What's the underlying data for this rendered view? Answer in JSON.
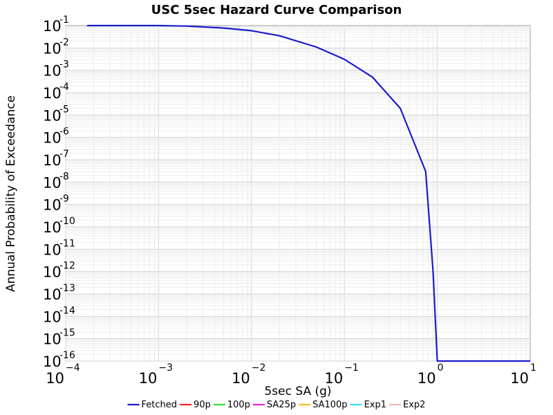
{
  "chart_data": {
    "type": "line",
    "title": "USC 5sec Hazard Curve Comparison",
    "xlabel": "5sec SA (g)",
    "ylabel": "Annual Probability of Exceedance",
    "x_scale": "log",
    "y_scale": "log",
    "xlim": [
      0.0001,
      10
    ],
    "ylim": [
      1e-16,
      0.1
    ],
    "x_ticks": [
      {
        "base": "10",
        "exp": "−4",
        "value": 0.0001
      },
      {
        "base": "10",
        "exp": "−3",
        "value": 0.001
      },
      {
        "base": "10",
        "exp": "−2",
        "value": 0.01
      },
      {
        "base": "10",
        "exp": "−1",
        "value": 0.1
      },
      {
        "base": "10",
        "exp": "0",
        "value": 1
      },
      {
        "base": "10",
        "exp": "1",
        "value": 10
      }
    ],
    "y_ticks": [
      {
        "base": "10",
        "exp": "-1",
        "value": 0.1
      },
      {
        "base": "10",
        "exp": "-2",
        "value": 0.01
      },
      {
        "base": "10",
        "exp": "-3",
        "value": 0.001
      },
      {
        "base": "10",
        "exp": "-4",
        "value": 0.0001
      },
      {
        "base": "10",
        "exp": "-5",
        "value": 1e-05
      },
      {
        "base": "10",
        "exp": "-6",
        "value": 1e-06
      },
      {
        "base": "10",
        "exp": "-7",
        "value": 1e-07
      },
      {
        "base": "10",
        "exp": "-8",
        "value": 1e-08
      },
      {
        "base": "10",
        "exp": "-9",
        "value": 1e-09
      },
      {
        "base": "10",
        "exp": "-10",
        "value": 1e-10
      },
      {
        "base": "10",
        "exp": "-11",
        "value": 1e-11
      },
      {
        "base": "10",
        "exp": "-12",
        "value": 1e-12
      },
      {
        "base": "10",
        "exp": "-13",
        "value": 1e-13
      },
      {
        "base": "10",
        "exp": "-14",
        "value": 1e-14
      },
      {
        "base": "10",
        "exp": "-15",
        "value": 1e-15
      },
      {
        "base": "10",
        "exp": "-16",
        "value": 1e-16
      }
    ],
    "grid": true,
    "legend_position": "bottom",
    "series": [
      {
        "name": "Fetched",
        "color": "#1a1acc",
        "x": [
          0.00017,
          0.0005,
          0.001,
          0.002,
          0.005,
          0.01,
          0.02,
          0.05,
          0.1,
          0.2,
          0.4,
          0.75,
          0.9,
          1.0,
          10
        ],
        "y": [
          0.1,
          0.1,
          0.1,
          0.095,
          0.078,
          0.059,
          0.035,
          0.011,
          0.0031,
          0.0005,
          2e-05,
          3e-08,
          1e-12,
          1e-16,
          1e-16
        ]
      },
      {
        "name": "90p",
        "color": "#ff2020",
        "x": [],
        "y": []
      },
      {
        "name": "100p",
        "color": "#33dd33",
        "x": [],
        "y": []
      },
      {
        "name": "SA25p",
        "color": "#ee22ee",
        "x": [],
        "y": []
      },
      {
        "name": "SA100p",
        "color": "#ffc020",
        "x": [],
        "y": []
      },
      {
        "name": "Exp1",
        "color": "#33ddff",
        "x": [],
        "y": []
      },
      {
        "name": "Exp2",
        "color": "#f4b8b8",
        "x": [],
        "y": []
      }
    ]
  }
}
